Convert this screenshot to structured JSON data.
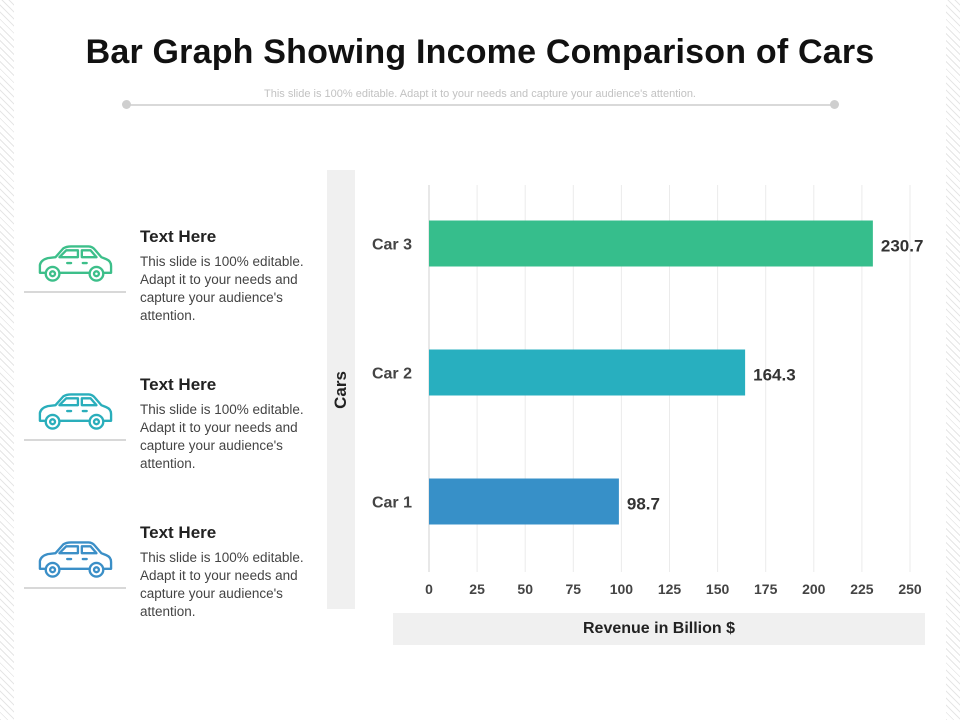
{
  "slide": {
    "title": "Bar Graph Showing Income Comparison of Cars",
    "subtitle": "This slide is 100% editable. Adapt it to your needs and capture your audience's attention."
  },
  "side_items": [
    {
      "title": "Text Here",
      "text": "This slide is 100% editable. Adapt it to your needs and capture your audience's attention.",
      "icon": "car-icon",
      "color": "#3dbf8a"
    },
    {
      "title": "Text Here",
      "text": "This slide is 100% editable. Adapt it to your needs and capture your audience's attention.",
      "icon": "car-icon",
      "color": "#2aaebb"
    },
    {
      "title": "Text Here",
      "text": "This slide is 100% editable. Adapt it to your needs and capture your audience's attention.",
      "icon": "car-icon",
      "color": "#3b8fc7"
    }
  ],
  "chart_data": {
    "type": "bar",
    "orientation": "horizontal",
    "categories": [
      "Car 3",
      "Car 2",
      "Car 1"
    ],
    "values": [
      230.7,
      164.3,
      98.7
    ],
    "value_labels": [
      "230.7",
      "164.3",
      "98.7"
    ],
    "colors": [
      "#36be8c",
      "#28afbf",
      "#3790c8"
    ],
    "title": "Bar Graph Showing Income Comparison of Cars",
    "xlabel": "Revenue in Billion $",
    "ylabel": "Cars",
    "xlim": [
      0,
      250
    ],
    "xticks": [
      0,
      25,
      50,
      75,
      100,
      125,
      150,
      175,
      200,
      225,
      250
    ],
    "xtick_labels": [
      "0",
      "25",
      "50",
      "75",
      "100",
      "125",
      "150",
      "175",
      "200",
      "225",
      "250"
    ],
    "grid": "vertical",
    "legend": "none"
  }
}
